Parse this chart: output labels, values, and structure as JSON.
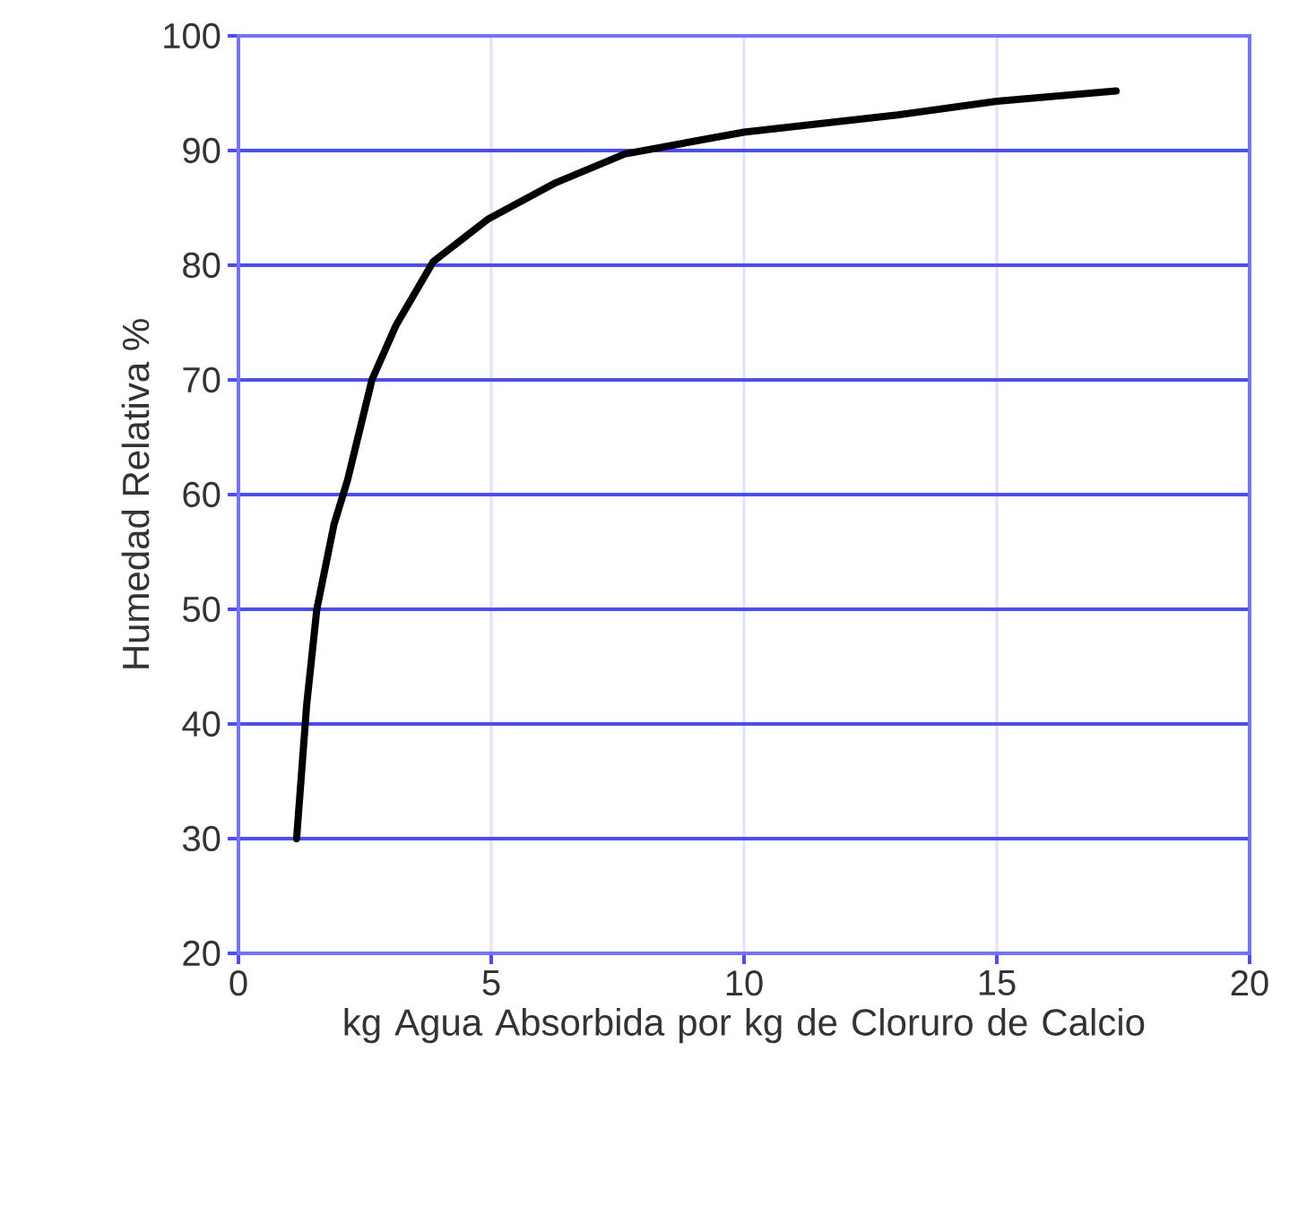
{
  "chart_data": {
    "type": "line",
    "xlabel": "kg Agua Absorbida por kg de Cloruro de Calcio",
    "ylabel": "Humedad Relativa  %",
    "xlim": [
      0,
      20
    ],
    "xticks": [
      0,
      5,
      10,
      15,
      20
    ],
    "ylim": [
      20,
      100
    ],
    "yticks": [
      20,
      30,
      40,
      50,
      60,
      70,
      80,
      90,
      100
    ],
    "grid": true,
    "series": [
      {
        "color": "#000000",
        "x": [
          1.15,
          1.35,
          1.55,
          1.89,
          2.16,
          2.64,
          3.11,
          3.85,
          4.93,
          6.28,
          7.64,
          10,
          13.04,
          15,
          17.36
        ],
        "values": [
          30,
          41.7,
          50,
          57.4,
          61.3,
          70,
          74.7,
          80.3,
          84,
          87.2,
          89.7,
          91.6,
          93.1,
          94.3,
          95.2
        ]
      }
    ]
  }
}
